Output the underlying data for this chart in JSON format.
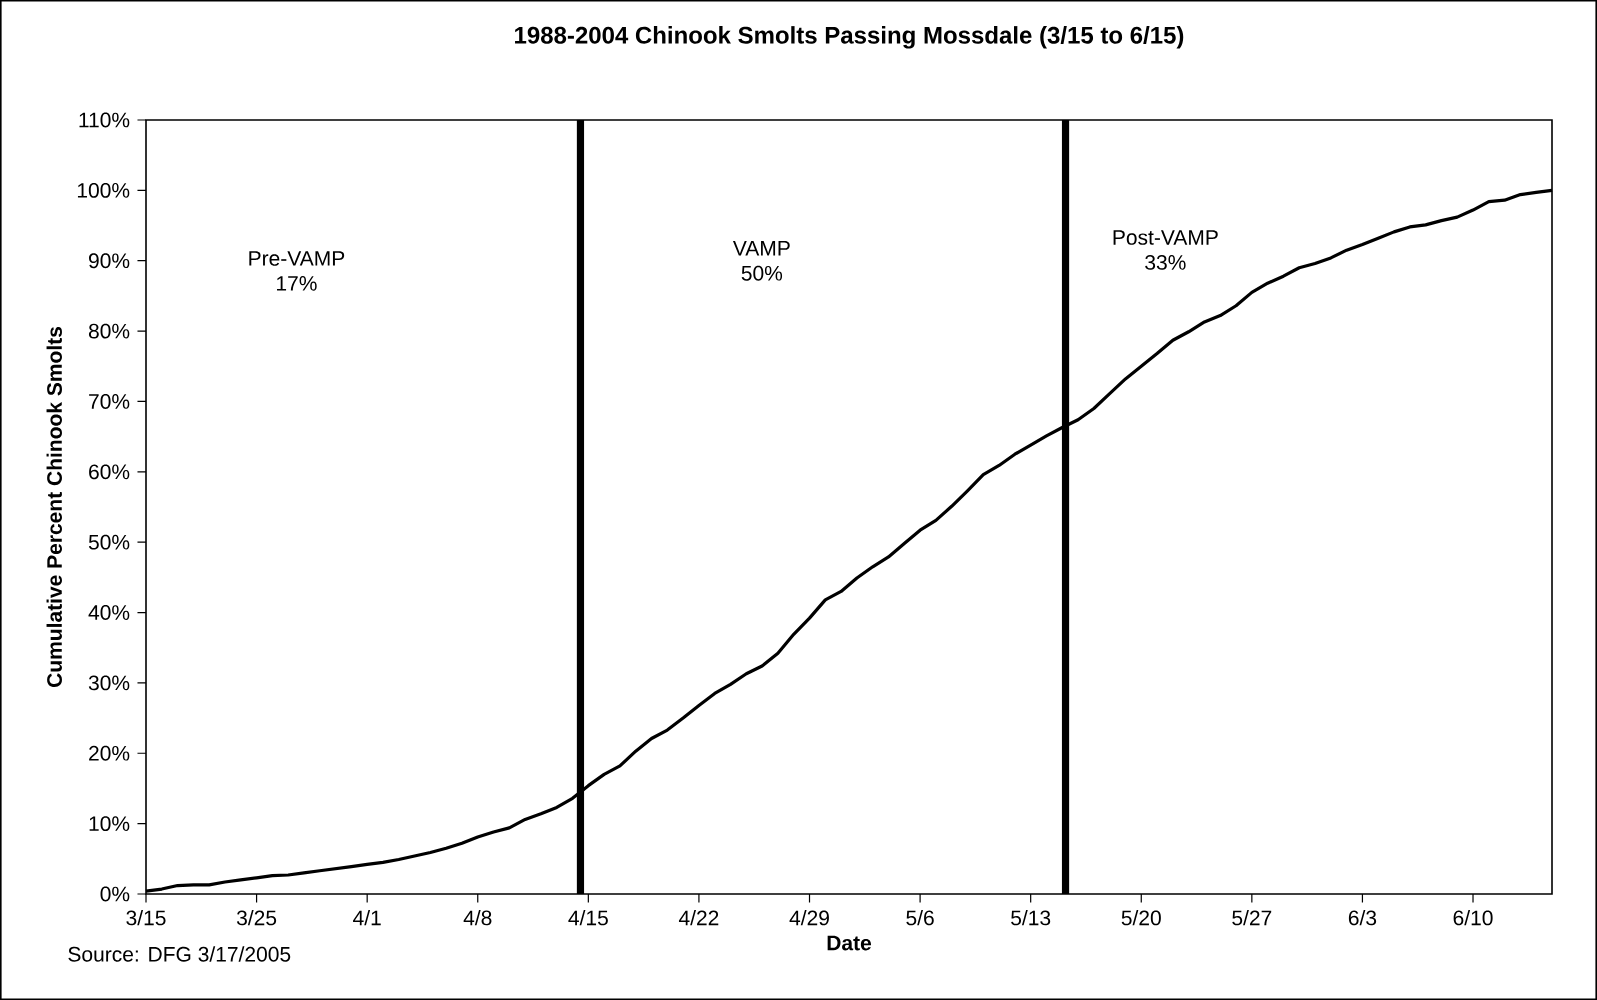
{
  "chart_data": {
    "type": "line",
    "title": "1988-2004 Chinook Smolts Passing Mossdale (3/15 to 6/15)",
    "xlabel": "Date",
    "ylabel": "Cumulative Percent Chinook Smolts",
    "categories": [
      "3/15",
      null,
      null,
      null,
      null,
      null,
      null,
      "3/25",
      null,
      null,
      null,
      null,
      null,
      null,
      "4/1",
      null,
      null,
      null,
      null,
      null,
      null,
      "4/8",
      null,
      null,
      null,
      null,
      null,
      null,
      "4/15",
      null,
      null,
      null,
      null,
      null,
      null,
      "4/22",
      null,
      null,
      null,
      null,
      null,
      null,
      "4/29",
      null,
      null,
      null,
      null,
      null,
      null,
      "5/6",
      null,
      null,
      null,
      null,
      null,
      null,
      "5/13",
      null,
      null,
      null,
      null,
      null,
      null,
      "5/20",
      null,
      null,
      null,
      null,
      null,
      null,
      "5/27",
      null,
      null,
      null,
      null,
      null,
      null,
      "6/3",
      null,
      null,
      null,
      null,
      null,
      null,
      "6/10",
      null,
      null,
      null,
      null,
      null
    ],
    "series": [
      {
        "color": "#000000",
        "values": [
          0.4,
          0.7,
          1.2,
          1.3,
          1.3,
          1.7,
          2.0,
          2.3,
          2.6,
          2.7,
          3.0,
          3.3,
          3.6,
          3.9,
          4.2,
          4.5,
          4.9,
          5.4,
          5.9,
          6.5,
          7.2,
          8.1,
          8.8,
          9.4,
          10.6,
          11.4,
          12.3,
          13.6,
          15.4,
          17.0,
          18.2,
          20.3,
          22.1,
          23.3,
          25.0,
          26.8,
          28.5,
          29.8,
          31.3,
          32.4,
          34.2,
          36.9,
          39.2,
          41.8,
          43.0,
          44.9,
          46.5,
          47.9,
          49.8,
          51.7,
          53.1,
          55.1,
          57.3,
          59.6,
          60.9,
          62.5,
          63.8,
          65.1,
          66.3,
          67.4,
          69.0,
          71.1,
          73.2,
          75.0,
          76.8,
          78.7,
          79.9,
          81.3,
          82.2,
          83.6,
          85.5,
          86.8,
          87.8,
          89.0,
          89.6,
          90.4,
          91.5,
          92.3,
          93.2,
          94.1,
          94.8,
          95.1,
          95.7,
          96.2,
          97.2,
          98.4,
          98.6,
          99.4,
          99.7,
          100
        ]
      }
    ],
    "ylim": [
      0,
      110
    ],
    "yticks": [
      {
        "value": 0,
        "label": "0%"
      },
      {
        "value": 10,
        "label": "10%"
      },
      {
        "value": 20,
        "label": "20%"
      },
      {
        "value": 30,
        "label": "30%"
      },
      {
        "value": 40,
        "label": "40%"
      },
      {
        "value": 50,
        "label": "50%"
      },
      {
        "value": 60,
        "label": "60%"
      },
      {
        "value": 70,
        "label": "70%"
      },
      {
        "value": 80,
        "label": "80%"
      },
      {
        "value": 90,
        "label": "90%"
      },
      {
        "value": 100,
        "label": "100%"
      },
      {
        "value": 110,
        "label": "110%"
      }
    ],
    "annotations": [
      "Pre-VAMP 17%",
      "VAMP 50%",
      "Post-VAMP 33%",
      "Source:  DFG 3/17/2005"
    ],
    "grid": false,
    "legend": false,
    "marker": "none",
    "line_style": "solid"
  }
}
